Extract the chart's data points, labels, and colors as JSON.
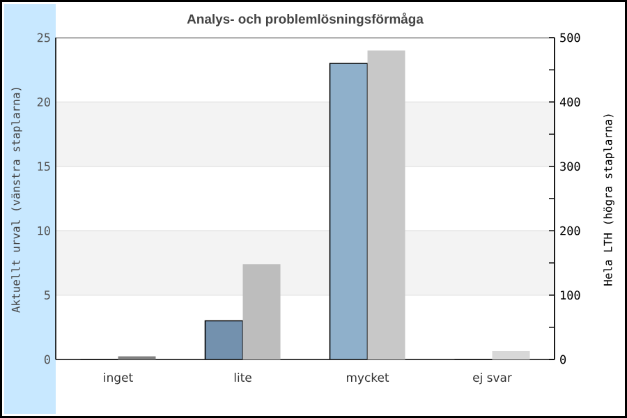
{
  "chart_data": {
    "type": "bar",
    "title": "Analys- och problemlösningsförmåga",
    "categories": [
      "inget",
      "lite",
      "mycket",
      "ej svar"
    ],
    "ylabel": "Aktuellt urval (vänstra staplarna)",
    "y2label": "Hela LTH (högra staplarna)",
    "series": [
      {
        "values": [
          0,
          3,
          23,
          0
        ],
        "colors": [
          "#7391ae",
          "#7391ae",
          "#8fb0cb",
          "#8fb0cb"
        ]
      },
      {
        "values": [
          5,
          148,
          480,
          13
        ],
        "axis": "y2",
        "colors": [
          "#808080",
          "#bdbdbd",
          "#c8c8c8",
          "#d8d8d8"
        ]
      }
    ],
    "ylim": [
      0,
      25
    ],
    "yticks": [
      0,
      5,
      10,
      15,
      20,
      25
    ],
    "y2lim": [
      0,
      500
    ],
    "y2ticks": [
      0,
      {
        "value": 50,
        "label": null
      },
      100,
      {
        "value": 150,
        "label": null
      },
      200,
      {
        "value": 250,
        "label": null
      },
      300,
      {
        "value": 350,
        "label": null
      },
      400,
      {
        "value": 450,
        "label": null
      },
      500
    ],
    "grid": "y",
    "bands": [
      {
        "axis": "y",
        "from": 5,
        "to": 10,
        "color": "#f3f3f3"
      },
      {
        "axis": "y",
        "from": 15,
        "to": 20,
        "color": "#f3f3f3"
      }
    ]
  }
}
